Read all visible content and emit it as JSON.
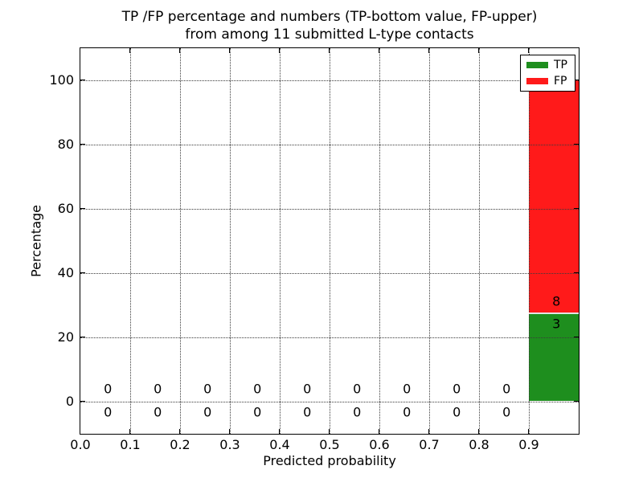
{
  "chart_data": {
    "type": "bar",
    "stacked": true,
    "title_line1": "TP /FP percentage and numbers (TP-bottom value, FP-upper)",
    "title_line2": "from among 11 submitted L-type contacts",
    "xlabel": "Predicted probability",
    "ylabel": "Percentage",
    "total_submitted_contacts": 11,
    "xlim": [
      0.0,
      1.0
    ],
    "ylim": [
      -10,
      110
    ],
    "xticks": [
      "0.0",
      "0.1",
      "0.2",
      "0.3",
      "0.4",
      "0.5",
      "0.6",
      "0.7",
      "0.8",
      "0.9"
    ],
    "xtick_values": [
      0.0,
      0.1,
      0.2,
      0.3,
      0.4,
      0.5,
      0.6,
      0.7,
      0.8,
      0.9
    ],
    "yticks": [
      0,
      20,
      40,
      60,
      80,
      100
    ],
    "grid_style": "dotted",
    "bins": {
      "start": 0.0,
      "width": 0.1,
      "count": 10
    },
    "categories": [
      0.05,
      0.15,
      0.25,
      0.35,
      0.45,
      0.55,
      0.65,
      0.75,
      0.85,
      0.95
    ],
    "series": [
      {
        "name": "TP",
        "color": "#1e8e1e",
        "counts": [
          0,
          0,
          0,
          0,
          0,
          0,
          0,
          0,
          0,
          3
        ],
        "percent": [
          0,
          0,
          0,
          0,
          0,
          0,
          0,
          0,
          0,
          27.27
        ]
      },
      {
        "name": "FP",
        "color": "#ff1a1a",
        "counts": [
          0,
          0,
          0,
          0,
          0,
          0,
          0,
          0,
          0,
          8
        ],
        "percent": [
          0,
          0,
          0,
          0,
          0,
          0,
          0,
          0,
          0,
          72.73
        ]
      }
    ],
    "legend": {
      "position": "upper right",
      "entries": [
        {
          "label": "TP",
          "color": "#1e8e1e"
        },
        {
          "label": "FP",
          "color": "#ff1a1a"
        }
      ]
    },
    "annotations": [
      {
        "x": 0.056,
        "y": 3.8,
        "text": "0"
      },
      {
        "x": 0.056,
        "y": -3.3,
        "text": "0"
      },
      {
        "x": 0.156,
        "y": 3.8,
        "text": "0"
      },
      {
        "x": 0.156,
        "y": -3.3,
        "text": "0"
      },
      {
        "x": 0.256,
        "y": 3.8,
        "text": "0"
      },
      {
        "x": 0.256,
        "y": -3.3,
        "text": "0"
      },
      {
        "x": 0.356,
        "y": 3.8,
        "text": "0"
      },
      {
        "x": 0.356,
        "y": -3.3,
        "text": "0"
      },
      {
        "x": 0.456,
        "y": 3.8,
        "text": "0"
      },
      {
        "x": 0.456,
        "y": -3.3,
        "text": "0"
      },
      {
        "x": 0.556,
        "y": 3.8,
        "text": "0"
      },
      {
        "x": 0.556,
        "y": -3.3,
        "text": "0"
      },
      {
        "x": 0.656,
        "y": 3.8,
        "text": "0"
      },
      {
        "x": 0.656,
        "y": -3.3,
        "text": "0"
      },
      {
        "x": 0.756,
        "y": 3.8,
        "text": "0"
      },
      {
        "x": 0.756,
        "y": -3.3,
        "text": "0"
      },
      {
        "x": 0.856,
        "y": 3.8,
        "text": "0"
      },
      {
        "x": 0.856,
        "y": -3.3,
        "text": "0"
      },
      {
        "x": 0.956,
        "y": 31.2,
        "text": "8"
      },
      {
        "x": 0.956,
        "y": 24.2,
        "text": "3"
      }
    ]
  }
}
